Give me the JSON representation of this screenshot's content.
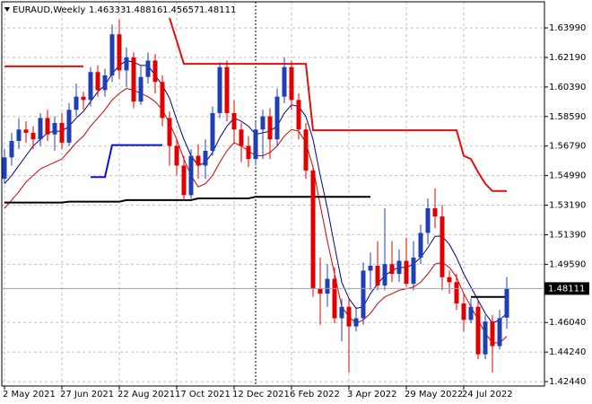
{
  "chart_data": {
    "type": "candlestick",
    "symbol": "EURAUD,Weekly",
    "categories": [
      "2 May 2021",
      null,
      null,
      null,
      null,
      null,
      null,
      null,
      "27 Jun 2021",
      null,
      null,
      null,
      null,
      null,
      null,
      null,
      "22 Aug 2021",
      null,
      null,
      null,
      null,
      null,
      null,
      null,
      "17 Oct 2021",
      null,
      null,
      null,
      null,
      null,
      null,
      null,
      "12 Dec 2021",
      null,
      null,
      null,
      null,
      null,
      null,
      null,
      "6 Feb 2022",
      null,
      null,
      null,
      null,
      null,
      null,
      null,
      "3 Apr 2022",
      null,
      null,
      null,
      null,
      null,
      null,
      null,
      "29 May 2022",
      null,
      null,
      null,
      null,
      null,
      null,
      null,
      "24 Jul 2022",
      null,
      null,
      null,
      null,
      null,
      null
    ],
    "open": [
      1.548,
      1.561,
      1.571,
      1.578,
      1.576,
      1.572,
      1.585,
      1.575,
      1.582,
      1.57,
      1.59,
      1.598,
      1.596,
      1.613,
      1.602,
      1.611,
      1.636,
      1.614,
      1.622,
      1.595,
      1.61,
      1.62,
      1.607,
      1.585,
      1.568,
      1.556,
      1.538,
      1.562,
      1.556,
      1.565,
      1.588,
      1.616,
      1.588,
      1.578,
      1.568,
      1.56,
      1.578,
      1.586,
      1.572,
      1.598,
      1.616,
      1.596,
      1.578,
      1.553,
      1.481,
      1.478,
      1.487,
      1.463,
      1.47,
      1.458,
      1.463,
      1.492,
      1.495,
      1.483,
      1.496,
      1.49,
      1.498,
      1.484,
      1.5,
      1.515,
      1.53,
      1.525,
      1.488,
      1.485,
      1.472,
      1.462,
      1.47,
      1.441,
      1.461,
      1.446,
      1.46333
    ],
    "high": [
      1.566,
      1.576,
      1.585,
      1.583,
      1.58,
      1.588,
      1.59,
      1.586,
      1.588,
      1.594,
      1.606,
      1.601,
      1.616,
      1.617,
      1.615,
      1.642,
      1.645,
      1.628,
      1.625,
      1.617,
      1.625,
      1.624,
      1.611,
      1.589,
      1.572,
      1.562,
      1.566,
      1.569,
      1.572,
      1.592,
      1.619,
      1.62,
      1.596,
      1.582,
      1.574,
      1.583,
      1.59,
      1.591,
      1.603,
      1.622,
      1.62,
      1.6,
      1.582,
      1.556,
      1.5,
      1.496,
      1.494,
      1.475,
      1.475,
      1.47,
      1.497,
      1.503,
      1.51,
      1.53,
      1.51,
      1.505,
      1.512,
      1.51,
      1.52,
      1.536,
      1.542,
      1.532,
      1.492,
      1.49,
      1.478,
      1.475,
      1.474,
      1.465,
      1.465,
      1.468,
      1.48816
    ],
    "low": [
      1.545,
      1.556,
      1.566,
      1.57,
      1.566,
      1.568,
      1.571,
      1.565,
      1.566,
      1.568,
      1.586,
      1.59,
      1.592,
      1.598,
      1.598,
      1.607,
      1.609,
      1.604,
      1.591,
      1.593,
      1.606,
      1.6,
      1.58,
      1.556,
      1.55,
      1.535,
      1.536,
      1.548,
      1.548,
      1.562,
      1.585,
      1.583,
      1.57,
      1.558,
      1.555,
      1.556,
      1.56,
      1.56,
      1.568,
      1.594,
      1.59,
      1.572,
      1.548,
      1.476,
      1.459,
      1.47,
      1.46,
      1.449,
      1.43,
      1.455,
      1.459,
      1.48,
      1.48,
      1.48,
      1.485,
      1.485,
      1.482,
      1.48,
      1.496,
      1.508,
      1.518,
      1.48,
      1.478,
      1.468,
      1.455,
      1.46,
      1.438,
      1.438,
      1.43,
      1.444,
      1.45657
    ],
    "close": [
      1.561,
      1.571,
      1.578,
      1.576,
      1.572,
      1.585,
      1.575,
      1.582,
      1.57,
      1.59,
      1.598,
      1.596,
      1.613,
      1.602,
      1.611,
      1.636,
      1.614,
      1.622,
      1.595,
      1.61,
      1.62,
      1.607,
      1.585,
      1.568,
      1.556,
      1.538,
      1.562,
      1.556,
      1.565,
      1.588,
      1.616,
      1.588,
      1.578,
      1.568,
      1.56,
      1.578,
      1.586,
      1.572,
      1.598,
      1.616,
      1.596,
      1.578,
      1.553,
      1.481,
      1.478,
      1.487,
      1.463,
      1.47,
      1.458,
      1.463,
      1.492,
      1.495,
      1.483,
      1.496,
      1.49,
      1.498,
      1.484,
      1.5,
      1.515,
      1.53,
      1.525,
      1.488,
      1.485,
      1.472,
      1.462,
      1.47,
      1.441,
      1.461,
      1.446,
      1.463,
      1.48111
    ],
    "up_color": "#1f3fb4",
    "down_color": "#e00000",
    "lines": [
      {
        "color": "#000080",
        "width": 1,
        "values": [
          1.545,
          1.55,
          1.556,
          1.562,
          1.568,
          1.572,
          1.576,
          1.577,
          1.577,
          1.58,
          1.585,
          1.589,
          1.595,
          1.601,
          1.605,
          1.612,
          1.617,
          1.62,
          1.619,
          1.617,
          1.617,
          1.611,
          1.605,
          1.597,
          1.584,
          1.572,
          1.562,
          1.556,
          1.558,
          1.564,
          1.573,
          1.58,
          1.585,
          1.583,
          1.58,
          1.575,
          1.576,
          1.577,
          1.58,
          1.588,
          1.593,
          1.592,
          1.586,
          1.572,
          1.55,
          1.53,
          1.507,
          1.485,
          1.475,
          1.469,
          1.47,
          1.478,
          1.484,
          1.489,
          1.492,
          1.494,
          1.494,
          1.496,
          1.5,
          1.506,
          1.513,
          1.513,
          1.508,
          1.5,
          1.49,
          1.482,
          1.474,
          1.466,
          1.46,
          1.462,
          1.466
        ]
      },
      {
        "color": "#d00000",
        "width": 1,
        "values": [
          1.53,
          1.535,
          1.54,
          1.546,
          1.55,
          1.554,
          1.556,
          1.558,
          1.56,
          1.565,
          1.57,
          1.574,
          1.58,
          1.585,
          1.59,
          1.596,
          1.6,
          1.603,
          1.602,
          1.6,
          1.598,
          1.595,
          1.59,
          1.582,
          1.572,
          1.56,
          1.55,
          1.543,
          1.545,
          1.55,
          1.558,
          1.565,
          1.57,
          1.568,
          1.565,
          1.562,
          1.562,
          1.564,
          1.568,
          1.574,
          1.578,
          1.577,
          1.57,
          1.555,
          1.532,
          1.51,
          1.49,
          1.47,
          1.464,
          1.46,
          1.462,
          1.466,
          1.472,
          1.476,
          1.478,
          1.48,
          1.481,
          1.482,
          1.485,
          1.49,
          1.496,
          1.497,
          1.494,
          1.488,
          1.478,
          1.47,
          1.462,
          1.454,
          1.448,
          1.448,
          1.452
        ]
      },
      {
        "color": "#e01010",
        "width": 2,
        "values": [
          1.6165,
          1.6165,
          1.6165,
          1.6165,
          1.6165,
          1.6165,
          1.6165,
          1.6165,
          1.6165,
          1.6165,
          1.6165,
          1.6165,
          null,
          null,
          null,
          null,
          null,
          null,
          null,
          null,
          null,
          null,
          null,
          1.646,
          1.632,
          1.618,
          1.618,
          1.618,
          1.618,
          1.618,
          1.618,
          1.618,
          1.618,
          1.618,
          1.618,
          1.618,
          1.618,
          1.618,
          1.618,
          1.618,
          1.618,
          1.618,
          1.618,
          1.5775,
          1.5775,
          1.5775,
          1.5775,
          1.5775,
          1.5775,
          1.5775,
          1.5775,
          1.5775,
          1.5775,
          1.5775,
          1.5775,
          1.5775,
          1.5775,
          1.5775,
          1.5775,
          1.5775,
          1.5775,
          1.5775,
          1.5775,
          1.5775,
          1.562,
          1.56,
          1.552,
          1.545,
          1.5405,
          1.5405,
          1.5405
        ]
      },
      {
        "color": "#1010c8",
        "width": 2,
        "values": [
          null,
          null,
          null,
          null,
          null,
          null,
          null,
          null,
          null,
          null,
          null,
          null,
          1.549,
          1.549,
          1.549,
          1.5685,
          1.5685,
          1.5685,
          1.5685,
          1.5685,
          1.5685,
          1.5685,
          1.5685,
          null,
          null,
          null,
          null,
          null,
          null,
          null,
          null,
          null,
          null,
          null,
          null,
          null,
          null,
          null,
          null,
          null,
          null,
          null,
          null,
          null,
          null,
          null,
          null,
          null,
          null,
          null,
          null,
          null,
          null,
          null,
          null,
          null,
          null,
          null,
          null,
          null,
          null,
          null,
          null,
          null,
          null,
          null,
          null,
          null,
          null,
          null,
          null
        ]
      },
      {
        "color": "#000000",
        "width": 2,
        "values": [
          1.5335,
          1.5335,
          1.5335,
          1.5335,
          1.5335,
          1.5335,
          1.5335,
          1.5335,
          1.5335,
          1.534,
          1.534,
          1.534,
          1.534,
          1.534,
          1.534,
          1.534,
          1.534,
          1.535,
          1.535,
          1.535,
          1.535,
          1.535,
          1.535,
          1.535,
          1.535,
          1.535,
          1.535,
          1.536,
          1.536,
          1.536,
          1.536,
          1.536,
          1.536,
          1.536,
          1.536,
          1.537,
          1.537,
          1.537,
          1.537,
          1.537,
          1.537,
          1.537,
          1.537,
          1.537,
          1.537,
          1.537,
          1.537,
          1.537,
          1.537,
          1.537,
          1.537,
          1.537,
          null,
          null,
          null,
          null,
          null,
          null,
          null,
          null,
          null,
          null,
          null,
          null,
          null,
          1.476,
          1.476,
          1.476,
          1.476,
          1.476,
          1.476
        ]
      }
    ],
    "ylim": [
      1.4217,
      1.6558
    ],
    "yticks": [
      {
        "value": 1.6399,
        "label": "1.63990"
      },
      {
        "value": 1.6219,
        "label": "1.62190"
      },
      {
        "value": 1.6039,
        "label": "1.60390"
      },
      {
        "value": 1.5859,
        "label": "1.58590"
      },
      {
        "value": 1.5679,
        "label": "1.56790"
      },
      {
        "value": 1.5499,
        "label": "1.54990"
      },
      {
        "value": 1.5319,
        "label": "1.53190"
      },
      {
        "value": 1.5139,
        "label": "1.51390"
      },
      {
        "value": 1.4959,
        "label": "1.49590"
      },
      {
        "value": 1.4604,
        "label": "1.46040"
      },
      {
        "value": 1.4424,
        "label": "1.44240"
      },
      {
        "value": 1.4244,
        "label": "1.42440"
      }
    ],
    "grid": true
  }
}
